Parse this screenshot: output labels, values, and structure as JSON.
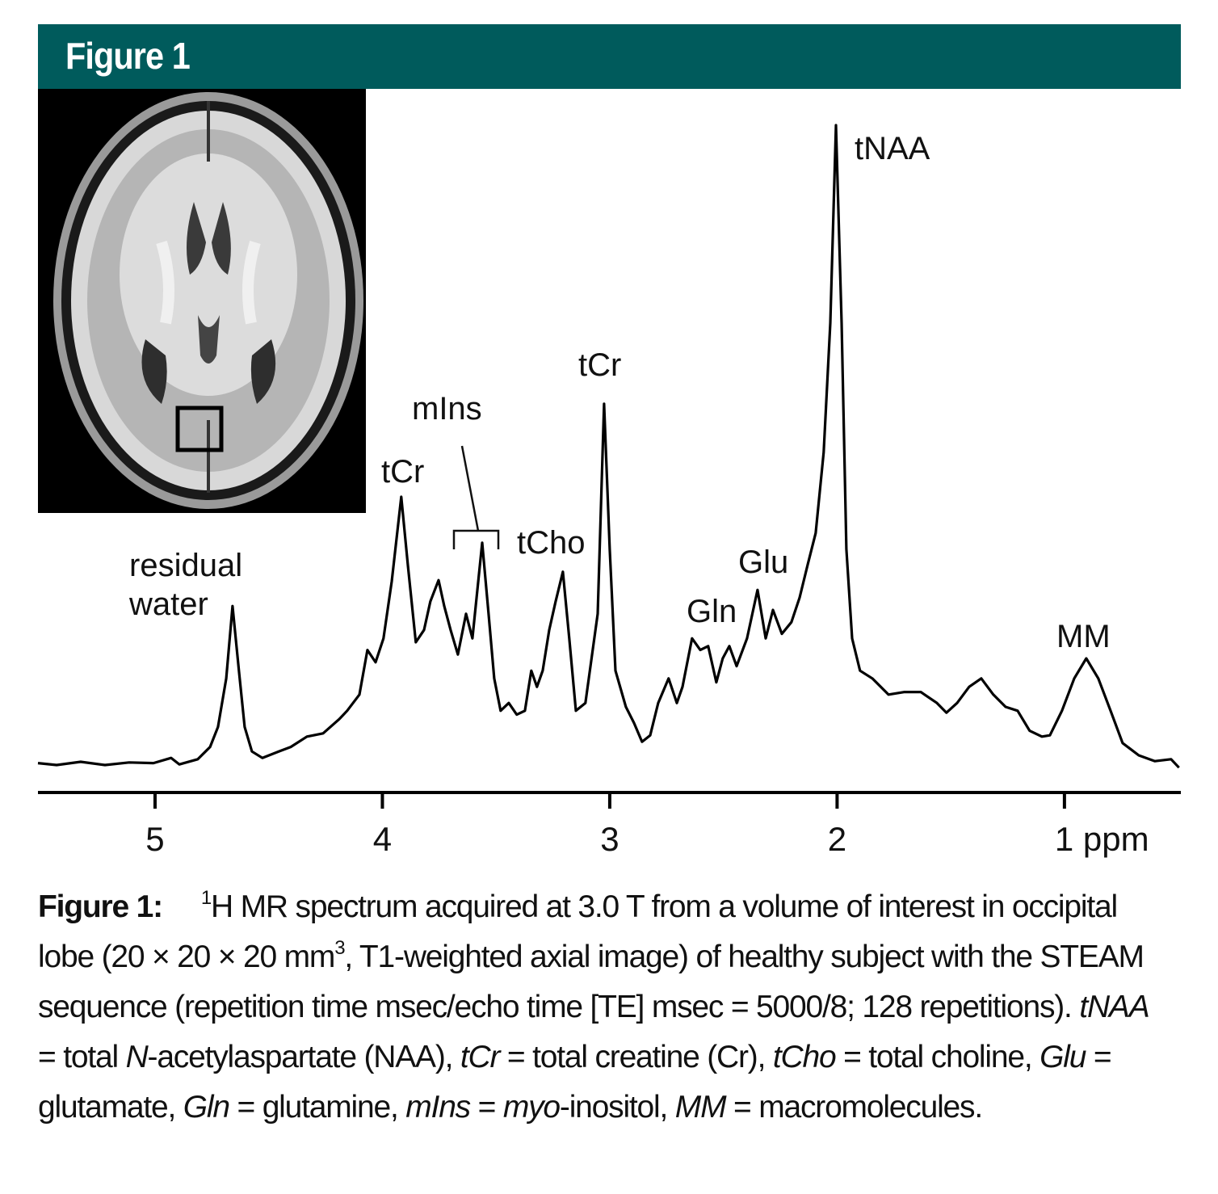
{
  "header": {
    "title": "Figure 1"
  },
  "chart_data": {
    "type": "line",
    "x": [
      5.515,
      5.433,
      5.327,
      5.22,
      5.114,
      5.007,
      4.929,
      4.893,
      4.812,
      4.758,
      4.723,
      4.687,
      4.659,
      4.631,
      4.606,
      4.574,
      4.528,
      4.456,
      4.403,
      4.332,
      4.261,
      4.19,
      4.155,
      4.101,
      4.066,
      4.03,
      3.995,
      3.959,
      3.917,
      3.888,
      3.853,
      3.817,
      3.789,
      3.753,
      3.728,
      3.7,
      3.668,
      3.632,
      3.604,
      3.561,
      3.533,
      3.508,
      3.48,
      3.444,
      3.409,
      3.373,
      3.345,
      3.32,
      3.295,
      3.266,
      3.238,
      3.206,
      3.178,
      3.149,
      3.107,
      3.053,
      3.025,
      3.0,
      2.975,
      2.929,
      2.893,
      2.858,
      2.822,
      2.787,
      2.741,
      2.705,
      2.68,
      2.638,
      2.602,
      2.567,
      2.531,
      2.503,
      2.474,
      2.442,
      2.396,
      2.35,
      2.314,
      2.282,
      2.243,
      2.201,
      2.165,
      2.13,
      2.094,
      2.059,
      2.03,
      2.005,
      1.98,
      1.959,
      1.934,
      1.899,
      1.845,
      1.774,
      1.703,
      1.632,
      1.561,
      1.519,
      1.472,
      1.419,
      1.366,
      1.313,
      1.259,
      1.206,
      1.153,
      1.099,
      1.064,
      1.011,
      0.957,
      0.904,
      0.851,
      0.797,
      0.744,
      0.673,
      0.602,
      0.531,
      0.496
    ],
    "values": [
      1.3,
      1.0,
      1.5,
      1.0,
      1.4,
      1.3,
      2.1,
      1.1,
      1.9,
      3.8,
      6.9,
      14.4,
      25.6,
      15.6,
      6.9,
      3.1,
      2.1,
      3.1,
      3.8,
      5.4,
      5.9,
      8.1,
      9.4,
      11.9,
      18.8,
      16.9,
      20.6,
      29.4,
      42.5,
      31.9,
      20.0,
      21.9,
      26.3,
      29.6,
      25.6,
      21.9,
      18.1,
      24.4,
      20.6,
      35.4,
      24.4,
      14.4,
      9.4,
      10.6,
      8.8,
      9.4,
      15.6,
      13.1,
      15.6,
      21.9,
      26.3,
      30.9,
      20.6,
      9.4,
      10.6,
      24.4,
      56.9,
      34.4,
      15.6,
      10.0,
      7.5,
      4.6,
      5.6,
      10.6,
      14.4,
      10.6,
      13.1,
      20.6,
      18.8,
      19.4,
      13.8,
      17.5,
      19.4,
      16.3,
      20.6,
      28.1,
      20.6,
      25.0,
      21.3,
      23.1,
      26.9,
      31.9,
      36.9,
      49.4,
      69.4,
      100.0,
      69.4,
      34.4,
      20.6,
      15.6,
      14.4,
      11.9,
      12.3,
      12.3,
      10.6,
      9.1,
      10.6,
      13.1,
      14.4,
      11.9,
      10.0,
      9.4,
      6.3,
      5.4,
      5.6,
      9.4,
      14.4,
      17.5,
      14.4,
      9.4,
      4.4,
      2.5,
      1.6,
      1.9,
      0.6
    ],
    "color": "#000000",
    "xlim": [
      5.515,
      0.488
    ],
    "ylim": [
      0,
      100
    ],
    "xticks": [
      5,
      4,
      3,
      2,
      {
        "value": 1,
        "label": "1 ppm"
      }
    ],
    "annotations": [
      "residual water",
      "tCr",
      "mIns",
      "tCho",
      "tCr",
      "Gln",
      "Glu",
      "tNAA",
      "MM"
    ]
  },
  "caption": {
    "label": "Figure 1:",
    "segments": [
      "1",
      "H MR spectrum acquired at 3.0 T from a volume of interest in occipital lobe (20 × 20 × 20 mm",
      "3",
      ", T1-weighted axial image) of healthy subject with the STEAM sequence (repetition time msec/echo time [TE] msec = 5000/8; 128 repetitions). ",
      "tNAA",
      " = total ",
      "N",
      "-acetylaspartate (NAA), ",
      "tCr",
      " = total creatine (Cr), ",
      "tCho",
      " = total choline, ",
      "Glu",
      " = glutamate, ",
      "Gln",
      " = glutamine, ",
      "mIns",
      " = ",
      "myo",
      "-inositol, ",
      "MM",
      " = macromolecules."
    ]
  }
}
